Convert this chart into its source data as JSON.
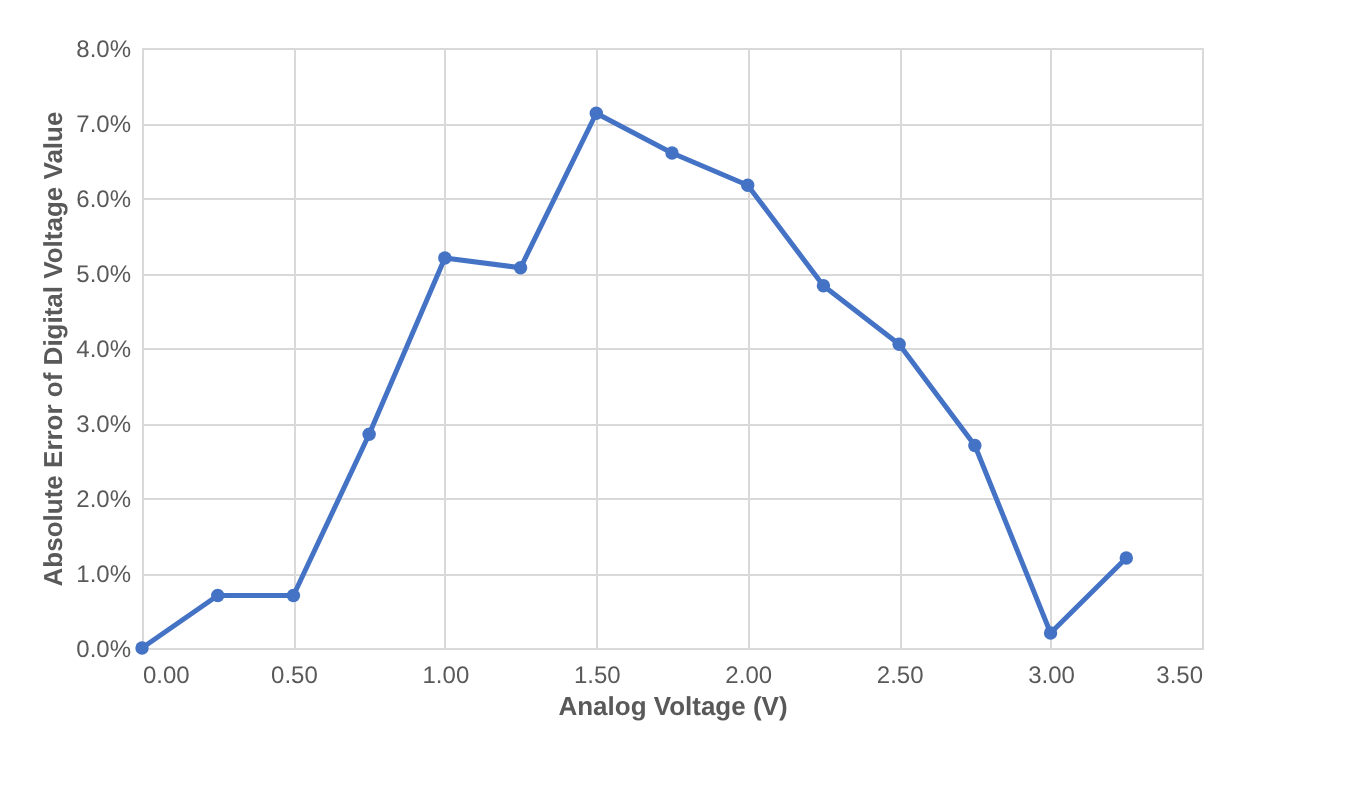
{
  "chart_data": {
    "type": "line",
    "xlabel": "Analog Voltage (V)",
    "ylabel": "Absolute Error  of Digital Voltage Value",
    "x": [
      0,
      0.25,
      0.5,
      0.75,
      1.0,
      1.25,
      1.5,
      1.75,
      2.0,
      2.25,
      2.5,
      2.75,
      3.0,
      3.25
    ],
    "series": [
      {
        "color": "#4472c4",
        "values": [
          0.0,
          0.7,
          0.7,
          2.85,
          5.2,
          5.07,
          7.13,
          6.6,
          6.17,
          4.83,
          4.05,
          2.7,
          0.2,
          1.2
        ]
      }
    ],
    "xlim": [
      0,
      3.5
    ],
    "ylim": [
      0,
      8
    ],
    "xticks": [
      {
        "value": 0,
        "label": "0.00"
      },
      {
        "value": 0.5,
        "label": "0.50"
      },
      {
        "value": 1,
        "label": "1.00"
      },
      {
        "value": 1.5,
        "label": "1.50"
      },
      {
        "value": 2,
        "label": "2.00"
      },
      {
        "value": 2.5,
        "label": "2.50"
      },
      {
        "value": 3,
        "label": "3.00"
      },
      {
        "value": 3.5,
        "label": "3.50"
      }
    ],
    "yticks": [
      {
        "value": 0,
        "label": "0.0%"
      },
      {
        "value": 1,
        "label": "1.0%"
      },
      {
        "value": 2,
        "label": "2.0%"
      },
      {
        "value": 3,
        "label": "3.0%"
      },
      {
        "value": 4,
        "label": "4.0%"
      },
      {
        "value": 5,
        "label": "5.0%"
      },
      {
        "value": 6,
        "label": "6.0%"
      },
      {
        "value": 7,
        "label": "7.0%"
      },
      {
        "value": 8,
        "label": "8.0%"
      }
    ],
    "grid": true,
    "marker": "circle",
    "line_style": "solid"
  }
}
